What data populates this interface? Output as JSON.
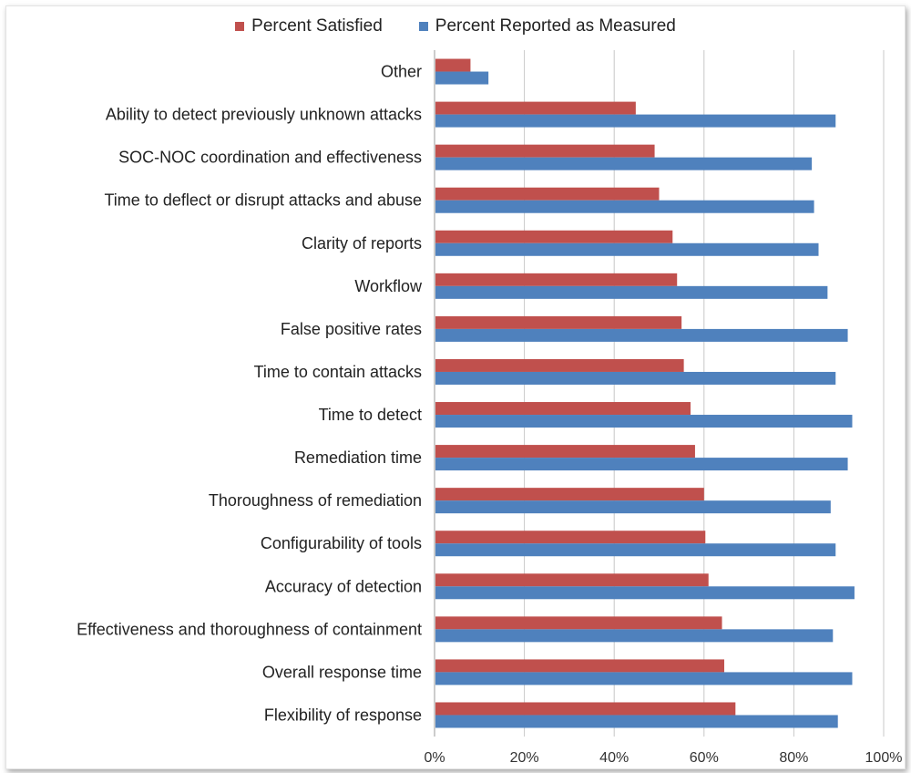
{
  "chart_data": {
    "type": "bar",
    "orientation": "horizontal",
    "categories": [
      "Other",
      "Ability to detect previously unknown attacks",
      "SOC-NOC coordination and effectiveness",
      "Time to deflect or disrupt attacks and abuse",
      "Clarity of reports",
      "Workflow",
      "False positive rates",
      "Time to contain attacks",
      "Time to detect",
      "Remediation time",
      "Thoroughness of remediation",
      "Configurability of tools",
      "Accuracy of detection",
      "Effectiveness and thoroughness of containment",
      "Overall response time",
      "Flexibility of response"
    ],
    "series": [
      {
        "name": "Percent Satisfied",
        "color": "#c0504d",
        "values": [
          8,
          44.8,
          49,
          50,
          53,
          54,
          55,
          55.5,
          57,
          58,
          60,
          60.3,
          61,
          64,
          64.5,
          67
        ]
      },
      {
        "name": "Percent Reported as Measured",
        "color": "#4f81bd",
        "values": [
          12,
          89.3,
          84,
          84.5,
          85.5,
          87.5,
          92,
          89.3,
          93,
          92,
          88.2,
          89.3,
          93.5,
          88.7,
          93,
          89.8
        ]
      }
    ],
    "xlim": [
      0,
      100
    ],
    "x_ticks": [
      "0%",
      "20%",
      "40%",
      "60%",
      "80%",
      "100%"
    ],
    "grid": "vertical",
    "legend_position": "top",
    "title": "",
    "xlabel": "",
    "ylabel": ""
  }
}
